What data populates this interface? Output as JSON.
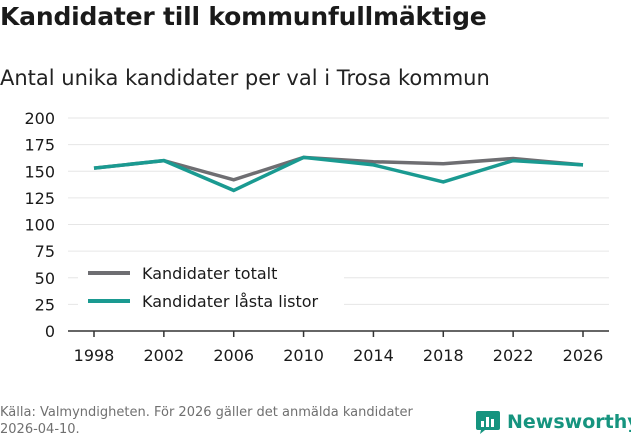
{
  "header": {
    "title": "Kandidater till kommunfullmäktige",
    "subtitle": "Antal unika kandidater per val i Trosa kommun"
  },
  "footer": {
    "source": "Källa: Valmyndigheten. För 2026 gäller det anmälda kandidater 2026-04-10.",
    "brand": "Newsworthy"
  },
  "colors": {
    "series_totalt": "#6e6e72",
    "series_lasta": "#1a9a91",
    "brand": "#16947f",
    "grid": "#e6e6e6"
  },
  "chart_data": {
    "type": "line",
    "title": "Antal unika kandidater per val i Trosa kommun",
    "xlabel": "",
    "ylabel": "",
    "x": [
      "1998",
      "2002",
      "2006",
      "2010",
      "2014",
      "2018",
      "2022",
      "2026"
    ],
    "ylim": [
      0,
      200
    ],
    "yticks": [
      0,
      25,
      50,
      75,
      100,
      125,
      150,
      175,
      200
    ],
    "grid": true,
    "legend_position": "bottom-left",
    "series": [
      {
        "name": "Kandidater totalt",
        "values": [
          153,
          160,
          142,
          163,
          159,
          157,
          162,
          156
        ]
      },
      {
        "name": "Kandidater låsta listor",
        "values": [
          153,
          160,
          132,
          163,
          156,
          140,
          160,
          156
        ]
      }
    ]
  }
}
